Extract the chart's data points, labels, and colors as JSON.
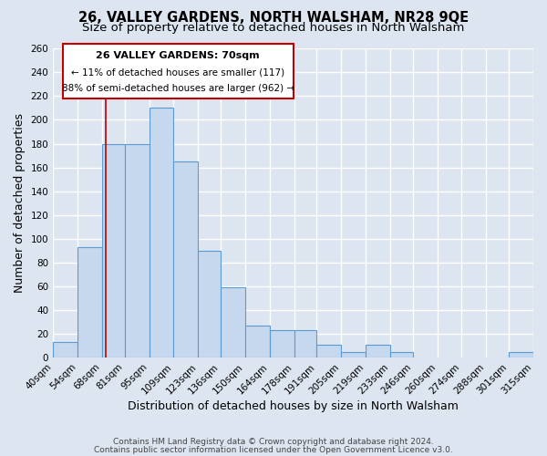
{
  "title": "26, VALLEY GARDENS, NORTH WALSHAM, NR28 9QE",
  "subtitle": "Size of property relative to detached houses in North Walsham",
  "xlabel": "Distribution of detached houses by size in North Walsham",
  "ylabel": "Number of detached properties",
  "footer_line1": "Contains HM Land Registry data © Crown copyright and database right 2024.",
  "footer_line2": "Contains public sector information licensed under the Open Government Licence v3.0.",
  "annotation_title": "26 VALLEY GARDENS: 70sqm",
  "annotation_line1": "← 11% of detached houses are smaller (117)",
  "annotation_line2": "88% of semi-detached houses are larger (962) →",
  "bar_edges": [
    40,
    54,
    68,
    81,
    95,
    109,
    123,
    136,
    150,
    164,
    178,
    191,
    205,
    219,
    233,
    246,
    260,
    274,
    288,
    301,
    315
  ],
  "bar_heights": [
    13,
    93,
    180,
    180,
    210,
    165,
    90,
    59,
    27,
    23,
    23,
    11,
    5,
    11,
    5,
    0,
    0,
    0,
    0,
    5
  ],
  "bar_color": "#c5d8ed",
  "bar_edge_color": "#5b9bd5",
  "red_line_x": 70,
  "ylim": [
    0,
    260
  ],
  "yticks": [
    0,
    20,
    40,
    60,
    80,
    100,
    120,
    140,
    160,
    180,
    200,
    220,
    240,
    260
  ],
  "xtick_labels": [
    "40sqm",
    "54sqm",
    "68sqm",
    "81sqm",
    "95sqm",
    "109sqm",
    "123sqm",
    "136sqm",
    "150sqm",
    "164sqm",
    "178sqm",
    "191sqm",
    "205sqm",
    "219sqm",
    "233sqm",
    "246sqm",
    "260sqm",
    "274sqm",
    "288sqm",
    "301sqm",
    "315sqm"
  ],
  "background_color": "#dde5f0",
  "plot_bg_color": "#dde5f0",
  "title_fontsize": 10.5,
  "subtitle_fontsize": 9.5,
  "axis_label_fontsize": 9,
  "tick_fontsize": 7.5,
  "annotation_border_color": "#c00000",
  "grid_color": "#ffffff",
  "grid_linewidth": 1.0
}
